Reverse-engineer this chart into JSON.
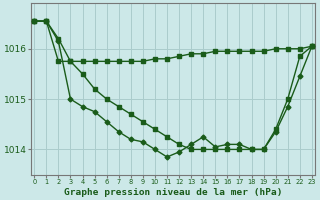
{
  "title": "",
  "xlabel": "Graphe pression niveau de la mer (hPa)",
  "ylabel": "",
  "bg_color": "#cce8e8",
  "grid_color": "#aacccc",
  "line_color": "#1a5c1a",
  "x": [
    0,
    1,
    2,
    3,
    4,
    5,
    6,
    7,
    8,
    9,
    10,
    11,
    12,
    13,
    14,
    15,
    16,
    17,
    18,
    19,
    20,
    21,
    22,
    23
  ],
  "line1": [
    1016.55,
    1016.55,
    1015.75,
    1015.75,
    1015.75,
    1015.75,
    1015.75,
    1015.75,
    1015.75,
    1015.75,
    1015.8,
    1015.8,
    1015.85,
    1015.9,
    1015.9,
    1015.95,
    1015.95,
    1015.95,
    1015.95,
    1015.95,
    1016.0,
    1016.0,
    1016.0,
    1016.05
  ],
  "line2": [
    1016.55,
    1016.55,
    1016.2,
    1015.75,
    1015.5,
    1015.2,
    1015.0,
    1014.85,
    1014.7,
    1014.55,
    1014.4,
    1014.25,
    1014.1,
    1014.0,
    1014.0,
    1014.0,
    1014.0,
    1014.0,
    1014.0,
    1014.0,
    1014.4,
    1015.0,
    1015.85,
    1016.05
  ],
  "line3": [
    1016.55,
    1016.55,
    1016.15,
    1015.0,
    1014.85,
    1014.75,
    1014.55,
    1014.35,
    1014.2,
    1014.15,
    1014.0,
    1013.85,
    1013.95,
    1014.1,
    1014.25,
    1014.05,
    1014.1,
    1014.1,
    1014.0,
    1014.0,
    1014.35,
    1014.85,
    1015.45,
    1016.05
  ],
  "yticks": [
    1014,
    1015,
    1016
  ],
  "ylim": [
    1013.5,
    1016.9
  ],
  "xlim": [
    -0.3,
    23.3
  ]
}
